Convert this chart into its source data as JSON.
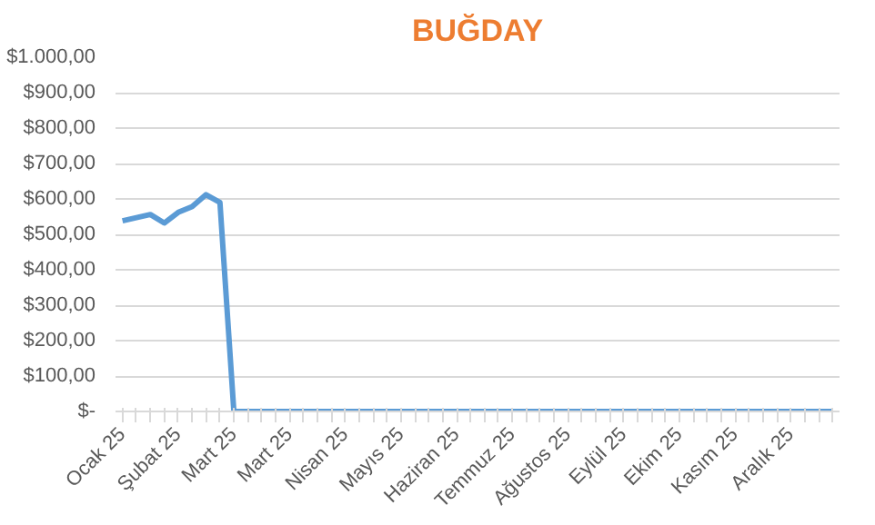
{
  "chart_data": {
    "type": "line",
    "title": "BUĞDAY",
    "categories": [
      "Ocak 25",
      null,
      null,
      null,
      "Şubat 25",
      null,
      null,
      null,
      "Mart 25",
      null,
      null,
      null,
      "Mart 25",
      null,
      null,
      null,
      "Nisan 25",
      null,
      null,
      null,
      "Mayıs 25",
      null,
      null,
      null,
      "Haziran 25",
      null,
      null,
      null,
      "Temmuz 25",
      null,
      null,
      null,
      "Ağustos 25",
      null,
      null,
      null,
      "Eylül 25",
      null,
      null,
      null,
      "Ekim 25",
      null,
      null,
      null,
      "Kasım 25",
      null,
      null,
      null,
      "Aralık 25",
      null,
      null,
      null
    ],
    "series": [
      {
        "color": "#5b9bd5",
        "values": [
          538,
          547,
          556,
          532,
          562,
          578,
          612,
          590,
          0,
          0,
          0,
          0,
          0,
          0,
          0,
          0,
          0,
          0,
          0,
          0,
          0,
          0,
          0,
          0,
          0,
          0,
          0,
          0,
          0,
          0,
          0,
          0,
          0,
          0,
          0,
          0,
          0,
          0,
          0,
          0,
          0,
          0,
          0,
          0,
          0,
          0,
          0,
          0,
          0,
          0,
          0,
          0
        ]
      }
    ],
    "ylim": [
      0,
      1000
    ],
    "yticks": [
      {
        "value": 0,
        "label": "$-"
      },
      {
        "value": 100,
        "label": "$100,00"
      },
      {
        "value": 200,
        "label": "$200,00"
      },
      {
        "value": 300,
        "label": "$300,00"
      },
      {
        "value": 400,
        "label": "$400,00"
      },
      {
        "value": 500,
        "label": "$500,00"
      },
      {
        "value": 600,
        "label": "$600,00"
      },
      {
        "value": 700,
        "label": "$700,00"
      },
      {
        "value": 800,
        "label": "$800,00"
      },
      {
        "value": 900,
        "label": "$900,00"
      },
      {
        "value": 1000,
        "label": "$1.000,00"
      }
    ],
    "grid": "y",
    "marker": "none",
    "line_style": "solid"
  }
}
